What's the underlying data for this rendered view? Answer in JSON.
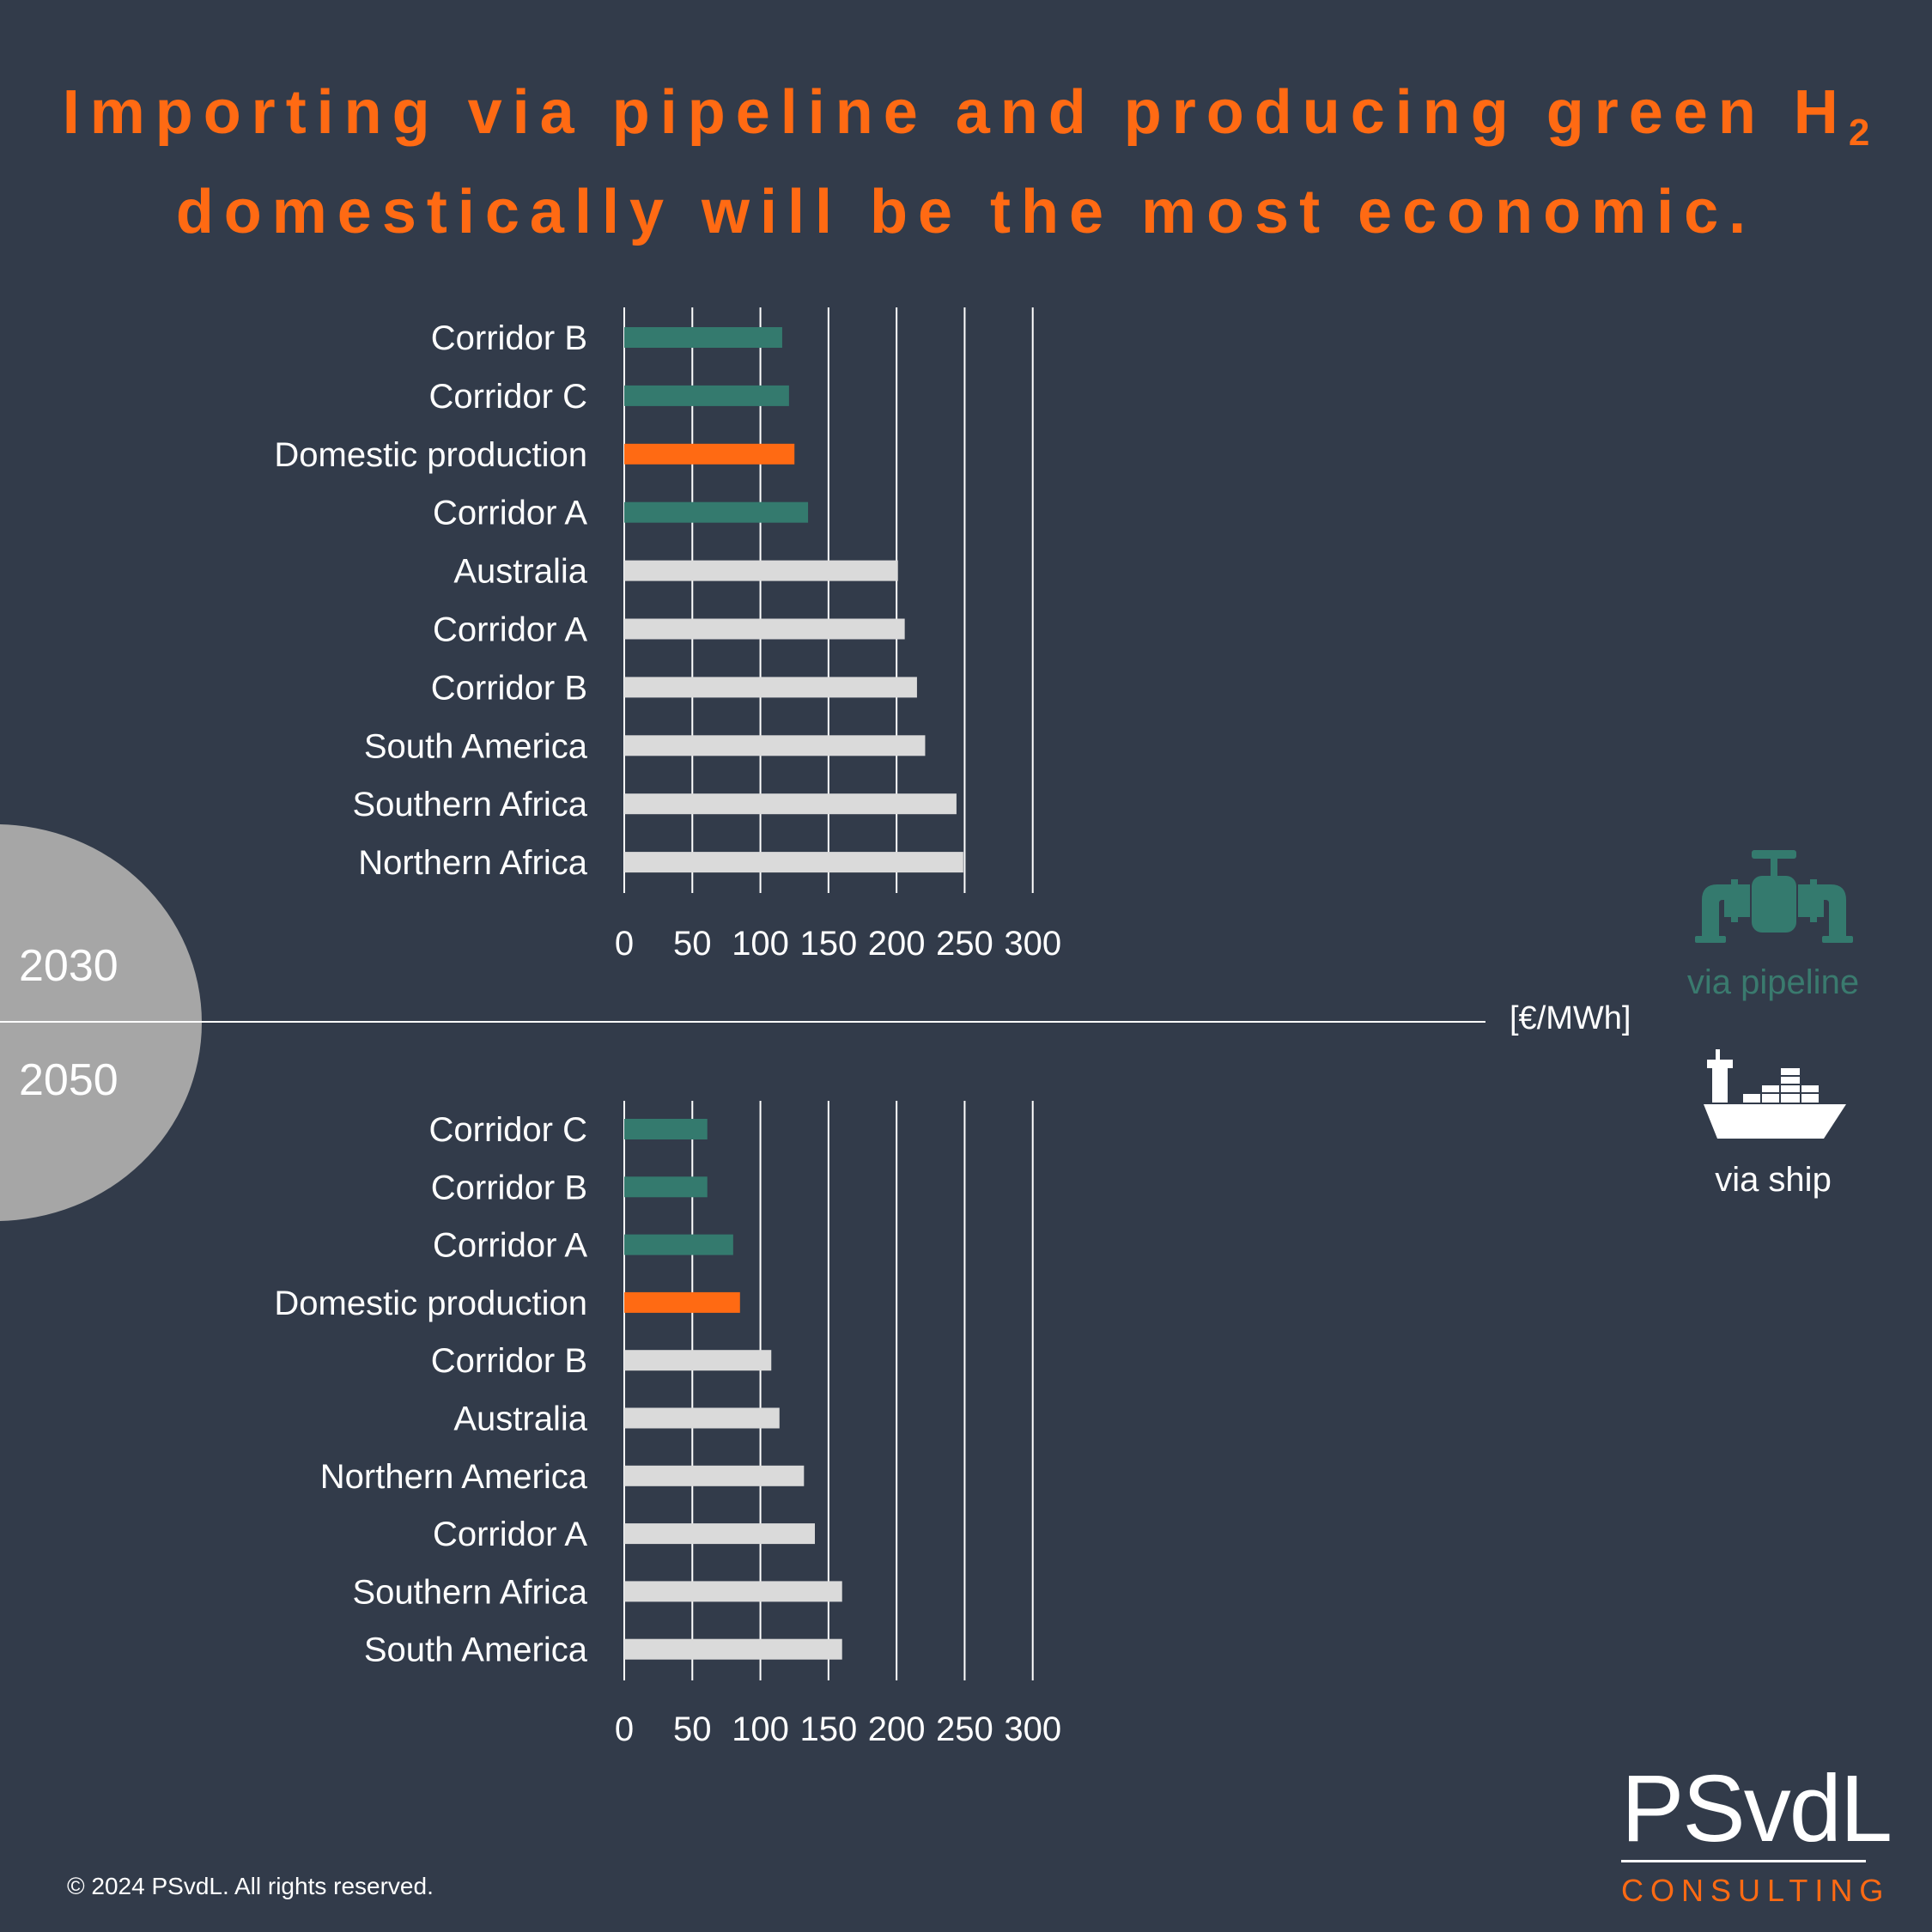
{
  "title": {
    "line1_main": "Importing via pipeline and producing green H",
    "line1_sub": "2",
    "line2": "domestically will be the most economic."
  },
  "periods": {
    "top": "2030",
    "bottom": "2050"
  },
  "unit": "[€/MWh]",
  "legend": {
    "pipeline_label": "via pipeline",
    "ship_label": "via ship",
    "pipeline_icon": "pipeline-icon",
    "ship_icon": "ship-icon"
  },
  "colors": {
    "pipeline": "#347a6e",
    "domestic": "#ff6a13",
    "ship": "#dadada",
    "background": "#323b4a"
  },
  "chart_data": [
    {
      "type": "bar",
      "orientation": "horizontal",
      "period": "2030",
      "categories": [
        "Corridor B",
        "Corridor C",
        "Domestic production",
        "Corridor A",
        "Australia",
        "Corridor A",
        "Corridor B",
        "South America",
        "Southern Africa",
        "Northern Africa"
      ],
      "values": [
        116,
        121,
        125,
        135,
        201,
        206,
        215,
        221,
        244,
        249
      ],
      "kinds": [
        "pipeline",
        "pipeline",
        "domestic",
        "pipeline",
        "ship",
        "ship",
        "ship",
        "ship",
        "ship",
        "ship"
      ],
      "xlim": [
        0,
        300
      ],
      "xticks": [
        "0",
        "50",
        "100",
        "150",
        "200",
        "250",
        "300"
      ],
      "grid": true
    },
    {
      "type": "bar",
      "orientation": "horizontal",
      "period": "2050",
      "categories": [
        "Corridor C",
        "Corridor B",
        "Corridor A",
        "Domestic production",
        "Corridor B",
        "Australia",
        "Northern America",
        "Corridor A",
        "Southern Africa",
        "South America"
      ],
      "values": [
        61,
        61,
        80,
        85,
        108,
        114,
        132,
        140,
        160,
        160
      ],
      "kinds": [
        "pipeline",
        "pipeline",
        "pipeline",
        "domestic",
        "ship",
        "ship",
        "ship",
        "ship",
        "ship",
        "ship"
      ],
      "xlim": [
        0,
        300
      ],
      "xticks": [
        "0",
        "50",
        "100",
        "150",
        "200",
        "250",
        "300"
      ],
      "grid": true
    }
  ],
  "logo": {
    "main": "PSvdL",
    "sub": "CONSULTING"
  },
  "copyright": "© 2024 PSvdL. All rights reserved."
}
